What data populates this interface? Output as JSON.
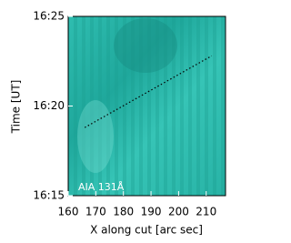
{
  "chart_data": {
    "type": "line",
    "xlabel": "X along cut [arc sec]",
    "ylabel": "Time [UT]",
    "annotation": "AIA 131Å",
    "xlim": [
      160,
      217
    ],
    "xticks": [
      160,
      170,
      180,
      190,
      200,
      210
    ],
    "ylim": [
      975,
      985
    ],
    "yticks": [
      {
        "value": 975,
        "label": "16:15"
      },
      {
        "value": 980,
        "label": "16:20"
      },
      {
        "value": 985,
        "label": "16:25"
      }
    ],
    "series": [
      {
        "color": "#000000",
        "x": [
          166,
          212
        ],
        "values": [
          978.8,
          982.8
        ]
      }
    ]
  }
}
